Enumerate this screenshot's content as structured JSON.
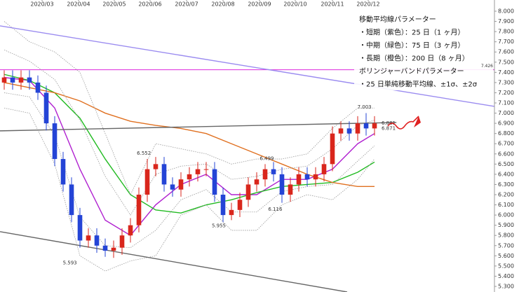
{
  "chart_data": {
    "type": "candlestick",
    "xlim": [
      0,
      58.75
    ],
    "ylim": [
      5.245,
      8.11
    ],
    "xticks": [
      {
        "value": 5,
        "label": "2020/03"
      },
      {
        "value": 9.33,
        "label": "2020/04"
      },
      {
        "value": 13.58,
        "label": "2020/05"
      },
      {
        "value": 17.83,
        "label": "2020/06"
      },
      {
        "value": 22.17,
        "label": "2020/07"
      },
      {
        "value": 26.5,
        "label": "2020/08"
      },
      {
        "value": 30.83,
        "label": "2020/09"
      },
      {
        "value": 35.08,
        "label": "2020/10"
      },
      {
        "value": 39.5,
        "label": "2020/11"
      },
      {
        "value": 43.75,
        "label": "2020/12"
      }
    ],
    "yticks": [
      {
        "value": 5.3,
        "label": "5.300"
      },
      {
        "value": 5.4,
        "label": "5.400"
      },
      {
        "value": 5.5,
        "label": "5.500"
      },
      {
        "value": 5.6,
        "label": "5.600"
      },
      {
        "value": 5.7,
        "label": "5.700"
      },
      {
        "value": 5.8,
        "label": "5.800"
      },
      {
        "value": 5.9,
        "label": "5.900"
      },
      {
        "value": 6,
        "label": "6.000"
      },
      {
        "value": 6.1,
        "label": "6.100"
      },
      {
        "value": 6.2,
        "label": "6.200"
      },
      {
        "value": 6.3,
        "label": "6.300"
      },
      {
        "value": 6.4,
        "label": "6.400"
      },
      {
        "value": 6.5,
        "label": "6.500"
      },
      {
        "value": 6.6,
        "label": "6.600"
      },
      {
        "value": 6.7,
        "label": "6.700"
      },
      {
        "value": 6.8,
        "label": "6.800"
      },
      {
        "value": 6.9,
        "label": "6.900"
      },
      {
        "value": 7,
        "label": "7.000"
      },
      {
        "value": 7.1,
        "label": "7.100"
      },
      {
        "value": 7.2,
        "label": "7.200"
      },
      {
        "value": 7.3,
        "label": "7.300"
      },
      {
        "value": 7.4,
        "label": "7.400"
      },
      {
        "value": 7.5,
        "label": "7.500"
      },
      {
        "value": 7.6,
        "label": "7.600"
      },
      {
        "value": 7.7,
        "label": "7.700"
      },
      {
        "value": 7.8,
        "label": "7.800"
      },
      {
        "value": 7.9,
        "label": "7.900"
      },
      {
        "value": 8,
        "label": "8.000"
      }
    ],
    "candles": {
      "up_color": "#d9261c",
      "down_color": "#2444d6",
      "x": [
        0.5,
        1.5,
        2.5,
        3.5,
        4.5,
        5.5,
        6.5,
        7.5,
        8.5,
        9.5,
        10.5,
        11.5,
        12.5,
        13.5,
        14.5,
        15.5,
        16.5,
        17.5,
        18.5,
        19.5,
        20.5,
        21.5,
        22.5,
        23.5,
        24.5,
        25.5,
        26.5,
        27.5,
        28.5,
        29.5,
        30.5,
        31.5,
        32.5,
        33.5,
        34.5,
        35.5,
        36.5,
        37.5,
        38.5,
        39.5,
        40.5,
        41.5,
        42.5,
        43.5,
        44.5
      ],
      "open": [
        7.3,
        7.35,
        7.3,
        7.35,
        7.3,
        7.2,
        6.9,
        6.55,
        6.3,
        6.0,
        5.75,
        5.8,
        5.7,
        5.65,
        5.68,
        5.8,
        5.9,
        6.2,
        6.45,
        6.5,
        6.3,
        6.25,
        6.35,
        6.4,
        6.45,
        6.45,
        6.2,
        6.0,
        6.05,
        6.15,
        6.3,
        6.35,
        6.45,
        6.4,
        6.2,
        6.3,
        6.4,
        6.35,
        6.4,
        6.5,
        6.8,
        6.85,
        6.8,
        6.9,
        6.85
      ],
      "high": [
        7.42,
        7.42,
        7.42,
        7.42,
        7.37,
        7.27,
        6.97,
        6.62,
        6.37,
        6.07,
        5.87,
        5.87,
        5.77,
        5.75,
        5.87,
        5.97,
        6.27,
        6.55,
        6.57,
        6.57,
        6.37,
        6.42,
        6.47,
        6.52,
        6.52,
        6.52,
        6.27,
        6.12,
        6.22,
        6.37,
        6.42,
        6.5,
        6.52,
        6.47,
        6.37,
        6.47,
        6.47,
        6.47,
        6.57,
        6.87,
        6.92,
        6.92,
        6.97,
        7.0,
        6.97
      ],
      "low": [
        7.23,
        7.23,
        7.23,
        7.23,
        7.13,
        6.83,
        6.48,
        6.23,
        5.93,
        5.68,
        5.68,
        5.63,
        5.59,
        5.58,
        5.61,
        5.73,
        5.83,
        6.13,
        6.38,
        6.23,
        6.18,
        6.18,
        6.28,
        6.33,
        6.38,
        6.13,
        5.93,
        5.95,
        5.98,
        6.08,
        6.23,
        6.28,
        6.33,
        6.12,
        6.13,
        6.23,
        6.28,
        6.28,
        6.33,
        6.43,
        6.73,
        6.73,
        6.73,
        6.78,
        6.78
      ],
      "close": [
        7.35,
        7.3,
        7.35,
        7.3,
        7.2,
        6.9,
        6.55,
        6.3,
        6.0,
        5.75,
        5.8,
        5.7,
        5.65,
        5.68,
        5.8,
        5.9,
        6.2,
        6.45,
        6.5,
        6.3,
        6.25,
        6.35,
        6.4,
        6.45,
        6.45,
        6.2,
        6.0,
        6.05,
        6.15,
        6.3,
        6.35,
        6.45,
        6.4,
        6.2,
        6.3,
        6.4,
        6.35,
        6.4,
        6.5,
        6.8,
        6.85,
        6.8,
        6.9,
        6.85,
        6.9
      ]
    },
    "series": [
      {
        "color": "#b020d0",
        "dash": false,
        "x": [
          0.5,
          3.5,
          6.5,
          9.5,
          12.5,
          15.5,
          18.5,
          21.5,
          24.5,
          27.5,
          30.5,
          33.5,
          36.5,
          39.5,
          42.5,
          44.5
        ],
        "values": [
          7.35,
          7.32,
          7.05,
          6.45,
          5.95,
          5.8,
          6.1,
          6.3,
          6.4,
          6.2,
          6.2,
          6.35,
          6.35,
          6.45,
          6.7,
          6.8
        ]
      },
      {
        "color": "#22bb22",
        "dash": false,
        "x": [
          0.5,
          3.5,
          6.5,
          9.5,
          12.5,
          15.5,
          18.5,
          21.5,
          24.5,
          27.5,
          30.5,
          33.5,
          36.5,
          39.5,
          42.5,
          44.5
        ],
        "values": [
          7.38,
          7.32,
          7.2,
          6.95,
          6.55,
          6.2,
          6.05,
          6.02,
          6.1,
          6.15,
          6.22,
          6.28,
          6.3,
          6.32,
          6.42,
          6.52
        ]
      },
      {
        "color": "#e07020",
        "dash": false,
        "x": [
          0.5,
          3.5,
          6.5,
          9.5,
          12.5,
          15.5,
          18.5,
          21.5,
          24.5,
          27.5,
          30.5,
          33.5,
          36.5,
          39.5,
          42.5,
          44.5
        ],
        "values": [
          7.3,
          7.25,
          7.2,
          7.12,
          7.0,
          6.92,
          6.88,
          6.85,
          6.8,
          6.7,
          6.6,
          6.5,
          6.4,
          6.32,
          6.28,
          6.28
        ]
      },
      {
        "color": "#999999",
        "dash": true,
        "x": [
          0.5,
          3.5,
          6.5,
          9.5,
          12.5,
          15.5,
          18.5,
          21.5,
          24.5,
          27.5,
          30.5,
          33.5,
          36.5,
          39.5,
          42.5,
          44.5
        ],
        "values": [
          7.9,
          7.7,
          7.6,
          7.4,
          6.8,
          6.2,
          6.7,
          6.65,
          6.6,
          6.5,
          6.55,
          6.55,
          6.6,
          6.85,
          7.05,
          7.05
        ]
      },
      {
        "color": "#999999",
        "dash": true,
        "x": [
          0.5,
          3.5,
          6.5,
          9.5,
          12.5,
          15.5,
          18.5,
          21.5,
          24.5,
          27.5,
          30.5,
          33.5,
          36.5,
          39.5,
          42.5,
          44.5
        ],
        "values": [
          7.62,
          7.51,
          7.33,
          6.93,
          6.38,
          6.0,
          6.4,
          6.48,
          6.5,
          6.35,
          6.38,
          6.45,
          6.48,
          6.65,
          6.88,
          6.93
        ]
      },
      {
        "color": "#999999",
        "dash": true,
        "x": [
          0.5,
          3.5,
          6.5,
          9.5,
          12.5,
          15.5,
          18.5,
          21.5,
          24.5,
          27.5,
          30.5,
          33.5,
          36.5,
          39.5,
          42.5,
          44.5
        ],
        "values": [
          7.2,
          7.16,
          6.78,
          5.98,
          5.7,
          5.68,
          5.85,
          6.15,
          6.25,
          6.03,
          6.03,
          6.23,
          6.28,
          6.3,
          6.53,
          6.68
        ]
      },
      {
        "color": "#999999",
        "dash": true,
        "x": [
          0.5,
          3.5,
          6.5,
          9.5,
          12.5,
          15.5,
          18.5,
          21.5,
          24.5,
          27.5,
          30.5,
          33.5,
          36.5,
          39.5,
          42.5,
          44.5
        ],
        "values": [
          7.05,
          7.0,
          6.5,
          5.6,
          5.45,
          5.55,
          5.6,
          6.0,
          6.1,
          5.85,
          5.85,
          6.1,
          6.2,
          6.15,
          6.35,
          6.55
        ]
      },
      {
        "color": "#9b8cf0",
        "dash": false,
        "x": [
          0,
          58.75
        ],
        "values": [
          7.856,
          7.066
        ]
      },
      {
        "color": "#666666",
        "dash": false,
        "x": [
          0,
          47.1
        ],
        "values": [
          6.826,
          6.908
        ]
      },
      {
        "color": "#666666",
        "dash": false,
        "x": [
          0,
          41.25
        ],
        "values": [
          5.837,
          5.245
        ]
      }
    ],
    "hline": {
      "value": 7.426,
      "color": "#e040e0"
    },
    "annotations": [
      {
        "x": 43.3,
        "value": 7.003,
        "color": "#e07020"
      },
      {
        "x": 45,
        "value": 6.881,
        "color": "#e0407b"
      },
      {
        "x": 45,
        "value": 6.871,
        "color": "#2090e0"
      },
      {
        "x": 17.1,
        "value": 6.552,
        "color": "#e07020"
      },
      {
        "x": 31.7,
        "value": 6.499,
        "color": "#e07020"
      },
      {
        "x": 32.7,
        "value": 6.116,
        "color": "#22aa22"
      },
      {
        "x": 26,
        "value": 5.955,
        "color": "#22aa22"
      },
      {
        "x": 8.3,
        "value": 5.593,
        "color": "#22aa22"
      }
    ],
    "notes": [
      "移動平均線パラメーター",
      "・短期（紫色）：25 日（1 ヶ月）",
      "・中期（緑色）：75 日（3 ヶ月）",
      "・長期（橙色）：200 日（8 ヶ月）",
      "ボリンジャーバンドパラメーター",
      "・25 日単純移動平均線、±1σ、±2σ"
    ]
  }
}
